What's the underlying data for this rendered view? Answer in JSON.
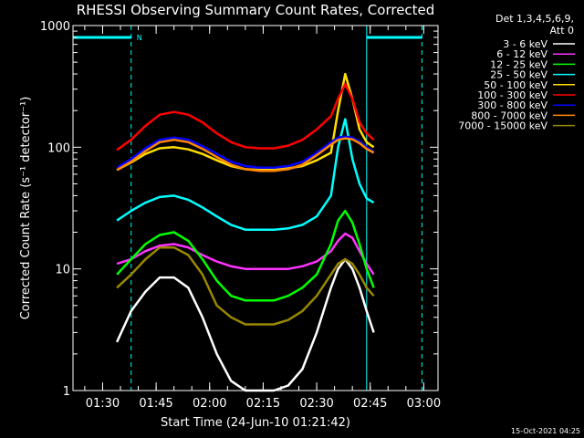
{
  "chart_data": {
    "type": "line",
    "title": "RHESSI Observing Summary Count Rates, Corrected",
    "xlabel": "Start Time (24-Jun-10 01:21:42)",
    "ylabel": "Corrected Count Rate (s⁻¹ detector⁻¹)",
    "y_scale": "log",
    "ylim": [
      1,
      1000
    ],
    "y_ticks": [
      {
        "value": 1,
        "label": "1"
      },
      {
        "value": 10,
        "label": "10"
      },
      {
        "value": 100,
        "label": "100"
      },
      {
        "value": 1000,
        "label": "1000"
      }
    ],
    "xlim": [
      "01:21:42",
      "03:04:00"
    ],
    "x_ticks": [
      "01:30",
      "01:45",
      "02:00",
      "02:15",
      "02:30",
      "02:45",
      "03:00"
    ],
    "legend_header": [
      "Det 1,3,4,5,6,9,",
      "Att 0"
    ],
    "legend_placement": "right",
    "timestamp": "15-Oct-2021 04:25",
    "annotations": [
      {
        "type": "night",
        "label": "N",
        "start": "01:21:42",
        "end": "01:38:00"
      },
      {
        "type": "night",
        "label": "",
        "start": "02:44:00",
        "end": "02:59:30"
      }
    ],
    "series": [
      {
        "name": "3 - 6 keV",
        "color": "#ffffff",
        "x": [
          "01:34",
          "01:38",
          "01:42",
          "01:46",
          "01:50",
          "01:54",
          "01:58",
          "02:02",
          "02:06",
          "02:10",
          "02:14",
          "02:18",
          "02:22",
          "02:26",
          "02:30",
          "02:34",
          "02:36",
          "02:38",
          "02:40",
          "02:42",
          "02:44",
          "02:46"
        ],
        "values": [
          2.5,
          4.5,
          6.5,
          8.5,
          8.5,
          7.0,
          4.0,
          2.0,
          1.2,
          1.0,
          1.0,
          1.0,
          1.1,
          1.5,
          3.0,
          7.0,
          10.0,
          12.0,
          10.0,
          7.0,
          4.5,
          3.0
        ]
      },
      {
        "name": "6 - 12 keV",
        "color": "#ff33ff",
        "x": [
          "01:34",
          "01:38",
          "01:42",
          "01:46",
          "01:50",
          "01:54",
          "01:58",
          "02:02",
          "02:06",
          "02:10",
          "02:14",
          "02:18",
          "02:22",
          "02:26",
          "02:30",
          "02:34",
          "02:36",
          "02:38",
          "02:40",
          "02:42",
          "02:44",
          "02:46"
        ],
        "values": [
          11,
          12,
          14,
          15.5,
          16,
          15,
          13,
          11.5,
          10.5,
          10,
          10,
          10,
          10,
          10.5,
          11.5,
          14,
          17,
          19.5,
          18,
          14,
          11,
          9
        ]
      },
      {
        "name": "12 - 25 keV",
        "color": "#00ff00",
        "x": [
          "01:34",
          "01:38",
          "01:42",
          "01:46",
          "01:50",
          "01:54",
          "01:58",
          "02:02",
          "02:06",
          "02:10",
          "02:14",
          "02:18",
          "02:22",
          "02:26",
          "02:30",
          "02:34",
          "02:36",
          "02:38",
          "02:40",
          "02:42",
          "02:44",
          "02:46"
        ],
        "values": [
          9,
          12,
          16,
          19,
          20,
          17,
          12,
          8,
          6,
          5.5,
          5.5,
          5.5,
          6,
          7,
          9,
          16,
          25,
          30,
          24,
          16,
          10,
          7
        ]
      },
      {
        "name": "25 - 50 keV",
        "color": "#00ffff",
        "x": [
          "01:34",
          "01:38",
          "01:42",
          "01:46",
          "01:50",
          "01:54",
          "01:58",
          "02:02",
          "02:06",
          "02:10",
          "02:14",
          "02:18",
          "02:22",
          "02:26",
          "02:30",
          "02:34",
          "02:36",
          "02:38",
          "02:40",
          "02:42",
          "02:44",
          "02:46"
        ],
        "values": [
          25,
          30,
          35,
          39,
          40,
          37,
          32,
          27,
          23,
          21,
          21,
          21,
          21.5,
          23,
          27,
          40,
          100,
          170,
          80,
          50,
          38,
          35
        ]
      },
      {
        "name": "50 - 100 keV",
        "color": "#ffdd00",
        "x": [
          "01:34",
          "01:38",
          "01:42",
          "01:46",
          "01:50",
          "01:54",
          "01:58",
          "02:02",
          "02:06",
          "02:10",
          "02:14",
          "02:18",
          "02:22",
          "02:26",
          "02:30",
          "02:34",
          "02:36",
          "02:38",
          "02:40",
          "02:42",
          "02:44",
          "02:46"
        ],
        "values": [
          65,
          75,
          88,
          98,
          100,
          96,
          88,
          78,
          70,
          66,
          65,
          65,
          67,
          70,
          78,
          90,
          200,
          400,
          250,
          140,
          110,
          100
        ]
      },
      {
        "name": "100 - 300 keV",
        "color": "#ff0000",
        "x": [
          "01:34",
          "01:38",
          "01:42",
          "01:46",
          "01:50",
          "01:54",
          "01:58",
          "02:02",
          "02:06",
          "02:10",
          "02:14",
          "02:18",
          "02:22",
          "02:26",
          "02:30",
          "02:34",
          "02:36",
          "02:38",
          "02:40",
          "02:42",
          "02:44",
          "02:46"
        ],
        "values": [
          95,
          115,
          150,
          185,
          195,
          185,
          160,
          130,
          110,
          100,
          98,
          98,
          103,
          115,
          140,
          180,
          250,
          330,
          250,
          160,
          130,
          115
        ]
      },
      {
        "name": "300 - 800 keV",
        "color": "#0000ff",
        "x": [
          "01:34",
          "01:38",
          "01:42",
          "01:46",
          "01:50",
          "01:54",
          "01:58",
          "02:02",
          "02:06",
          "02:10",
          "02:14",
          "02:18",
          "02:22",
          "02:26",
          "02:30",
          "02:34",
          "02:36",
          "02:38",
          "02:40",
          "02:42",
          "02:44",
          "02:46"
        ],
        "values": [
          68,
          80,
          98,
          115,
          120,
          115,
          102,
          88,
          76,
          70,
          68,
          68,
          70,
          76,
          90,
          110,
          120,
          122,
          120,
          112,
          100,
          92
        ]
      },
      {
        "name": "800 - 7000 keV",
        "color": "#ff8800",
        "x": [
          "01:34",
          "01:38",
          "01:42",
          "01:46",
          "01:50",
          "01:54",
          "01:58",
          "02:02",
          "02:06",
          "02:10",
          "02:14",
          "02:18",
          "02:22",
          "02:26",
          "02:30",
          "02:34",
          "02:36",
          "02:38",
          "02:40",
          "02:42",
          "02:44",
          "02:46"
        ],
        "values": [
          65,
          76,
          93,
          110,
          115,
          110,
          97,
          83,
          72,
          66,
          64,
          64,
          66,
          72,
          86,
          105,
          115,
          118,
          116,
          108,
          97,
          90
        ]
      },
      {
        "name": "7000 - 15000 keV",
        "color": "#998800",
        "x": [
          "01:34",
          "01:38",
          "01:42",
          "01:46",
          "01:50",
          "01:54",
          "01:58",
          "02:02",
          "02:06",
          "02:10",
          "02:14",
          "02:18",
          "02:22",
          "02:26",
          "02:30",
          "02:34",
          "02:36",
          "02:38",
          "02:40",
          "02:42",
          "02:44",
          "02:46"
        ],
        "values": [
          7,
          9,
          12,
          15,
          15,
          13,
          9,
          5,
          4,
          3.5,
          3.5,
          3.5,
          3.8,
          4.5,
          6,
          9,
          11,
          12,
          11,
          9,
          7,
          6
        ]
      }
    ]
  }
}
